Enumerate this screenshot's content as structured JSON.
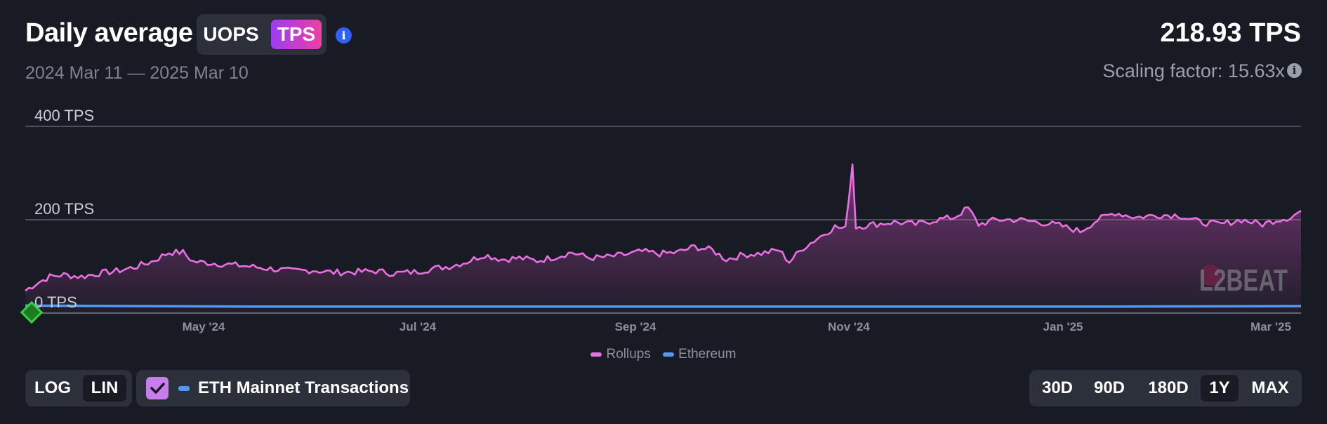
{
  "header": {
    "title": "Daily average",
    "unit_options": [
      "UOPS",
      "TPS"
    ],
    "selected_unit": "TPS",
    "date_range": "2024 Mar 11 — 2025 Mar 10",
    "current_value": "218.93 TPS",
    "scaling_factor": "Scaling factor: 15.63x"
  },
  "watermark": "L2BEAT",
  "controls": {
    "scale_log": "LOG",
    "scale_lin": "LIN",
    "selected_scale": "LIN",
    "eth_toggle_label": "ETH Mainnet Transactions",
    "eth_toggle_checked": true,
    "ranges": [
      "30D",
      "90D",
      "180D",
      "1Y",
      "MAX"
    ],
    "selected_range": "1Y"
  },
  "colors": {
    "rollups": "#ea6fe0",
    "ethereum": "#4d9bf5",
    "accent_gradient_start": "#9a3df0",
    "accent_gradient_end": "#ee3fa6",
    "background": "#181b24",
    "start_marker": "#35d43a"
  },
  "chart_data": {
    "type": "area",
    "y_tick_labels": [
      "0 TPS",
      "200 TPS",
      "400 TPS"
    ],
    "y_ticks": [
      0,
      200,
      400
    ],
    "ylim": [
      0,
      400
    ],
    "x_tick_labels": [
      "May '24",
      "Jul '24",
      "Sep '24",
      "Nov '24",
      "Jan '25",
      "Mar '25"
    ],
    "x_range": [
      "2024-03-11",
      "2025-03-10"
    ],
    "grid": true,
    "legend_position": "bottom-center",
    "series": [
      {
        "name": "Rollups",
        "points": [
          [
            "2024-03-11",
            48
          ],
          [
            "2024-03-14",
            63
          ],
          [
            "2024-03-18",
            78
          ],
          [
            "2024-03-22",
            82
          ],
          [
            "2024-03-27",
            78
          ],
          [
            "2024-04-01",
            85
          ],
          [
            "2024-04-06",
            90
          ],
          [
            "2024-04-11",
            98
          ],
          [
            "2024-04-16",
            110
          ],
          [
            "2024-04-21",
            130
          ],
          [
            "2024-04-25",
            130
          ],
          [
            "2024-04-28",
            110
          ],
          [
            "2024-05-02",
            108
          ],
          [
            "2024-05-08",
            104
          ],
          [
            "2024-05-14",
            100
          ],
          [
            "2024-05-20",
            95
          ],
          [
            "2024-05-26",
            90
          ],
          [
            "2024-06-01",
            92
          ],
          [
            "2024-06-07",
            87
          ],
          [
            "2024-06-13",
            88
          ],
          [
            "2024-06-19",
            90
          ],
          [
            "2024-06-24",
            85
          ],
          [
            "2024-06-30",
            88
          ],
          [
            "2024-07-05",
            95
          ],
          [
            "2024-07-10",
            100
          ],
          [
            "2024-07-15",
            110
          ],
          [
            "2024-07-20",
            125
          ],
          [
            "2024-07-25",
            115
          ],
          [
            "2024-07-30",
            118
          ],
          [
            "2024-08-04",
            112
          ],
          [
            "2024-08-09",
            120
          ],
          [
            "2024-08-14",
            130
          ],
          [
            "2024-08-19",
            118
          ],
          [
            "2024-08-24",
            120
          ],
          [
            "2024-08-29",
            125
          ],
          [
            "2024-09-03",
            132
          ],
          [
            "2024-09-08",
            127
          ],
          [
            "2024-09-13",
            130
          ],
          [
            "2024-09-18",
            142
          ],
          [
            "2024-09-23",
            135
          ],
          [
            "2024-09-27",
            115
          ],
          [
            "2024-10-02",
            125
          ],
          [
            "2024-10-07",
            128
          ],
          [
            "2024-10-12",
            135
          ],
          [
            "2024-10-15",
            110
          ],
          [
            "2024-10-19",
            140
          ],
          [
            "2024-10-24",
            165
          ],
          [
            "2024-10-28",
            185
          ],
          [
            "2024-10-31",
            180
          ],
          [
            "2024-11-02",
            320
          ],
          [
            "2024-11-03",
            185
          ],
          [
            "2024-11-08",
            190
          ],
          [
            "2024-11-14",
            195
          ],
          [
            "2024-11-20",
            190
          ],
          [
            "2024-11-26",
            200
          ],
          [
            "2024-12-01",
            205
          ],
          [
            "2024-12-05",
            225
          ],
          [
            "2024-12-08",
            190
          ],
          [
            "2024-12-13",
            200
          ],
          [
            "2024-12-19",
            200
          ],
          [
            "2024-12-25",
            195
          ],
          [
            "2024-12-31",
            188
          ],
          [
            "2025-01-06",
            175
          ],
          [
            "2025-01-11",
            200
          ],
          [
            "2025-01-16",
            215
          ],
          [
            "2025-01-22",
            205
          ],
          [
            "2025-01-28",
            210
          ],
          [
            "2025-02-03",
            210
          ],
          [
            "2025-02-09",
            195
          ],
          [
            "2025-02-15",
            190
          ],
          [
            "2025-02-21",
            200
          ],
          [
            "2025-02-27",
            190
          ],
          [
            "2025-03-03",
            200
          ],
          [
            "2025-03-07",
            205
          ],
          [
            "2025-03-10",
            218.93
          ]
        ]
      },
      {
        "name": "Ethereum",
        "points": [
          [
            "2024-03-11",
            16
          ],
          [
            "2024-05-15",
            14
          ],
          [
            "2024-07-15",
            14
          ],
          [
            "2024-09-15",
            14
          ],
          [
            "2024-11-15",
            14
          ],
          [
            "2025-01-15",
            14
          ],
          [
            "2025-03-10",
            15
          ]
        ]
      }
    ]
  }
}
